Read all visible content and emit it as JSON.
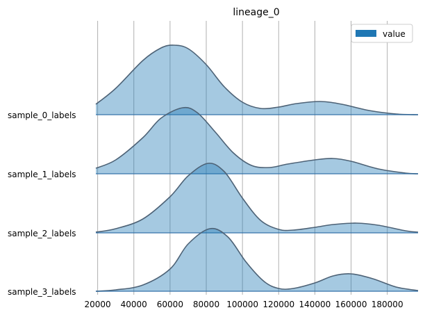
{
  "chart_data": {
    "type": "area",
    "title": "lineage_0",
    "xlabel": "",
    "ylabel": "",
    "x_ticks": [
      20000,
      40000,
      60000,
      80000,
      100000,
      120000,
      140000,
      160000,
      180000
    ],
    "x_tick_labels": [
      "20000",
      "40000",
      "60000",
      "80000",
      "100000",
      "120000",
      "140000",
      "160000",
      "180000"
    ],
    "xlim": [
      19000,
      197000
    ],
    "grid": "vertical",
    "legend": {
      "position": "top-right",
      "entries": [
        "value"
      ]
    },
    "colors": {
      "fill": "#1f77b4",
      "fill_opacity": 0.4,
      "line": "#4d6276",
      "baseline": "#2e6fa8"
    },
    "row_labels": [
      "sample_0_labels",
      "sample_1_labels",
      "sample_2_labels",
      "sample_3_labels"
    ],
    "series": [
      {
        "name": "sample_0_labels",
        "x": [
          19000,
          30000,
          45000,
          55000,
          62000,
          70000,
          80000,
          90000,
          100000,
          110000,
          120000,
          130000,
          143000,
          155000,
          170000,
          185000,
          197000
        ],
        "y": [
          0.15,
          0.38,
          0.78,
          0.96,
          1.0,
          0.95,
          0.72,
          0.4,
          0.18,
          0.09,
          0.11,
          0.16,
          0.19,
          0.15,
          0.06,
          0.01,
          0.0
        ]
      },
      {
        "name": "sample_1_labels",
        "x": [
          19000,
          30000,
          45000,
          55000,
          67000,
          75000,
          85000,
          95000,
          105000,
          115000,
          125000,
          140000,
          150000,
          160000,
          175000,
          190000,
          197000
        ],
        "y": [
          0.08,
          0.2,
          0.52,
          0.8,
          0.95,
          0.88,
          0.6,
          0.3,
          0.12,
          0.09,
          0.14,
          0.2,
          0.22,
          0.18,
          0.07,
          0.01,
          0.0
        ]
      },
      {
        "name": "sample_2_labels",
        "x": [
          19000,
          30000,
          45000,
          60000,
          70000,
          81000,
          90000,
          100000,
          110000,
          120000,
          128000,
          140000,
          150000,
          163000,
          175000,
          190000,
          197000
        ],
        "y": [
          0.01,
          0.06,
          0.2,
          0.52,
          0.82,
          1.0,
          0.88,
          0.5,
          0.18,
          0.05,
          0.04,
          0.08,
          0.12,
          0.14,
          0.11,
          0.03,
          0.01
        ]
      },
      {
        "name": "sample_3_labels",
        "x": [
          19000,
          30000,
          45000,
          60000,
          70000,
          82000,
          92000,
          102000,
          112000,
          120000,
          128000,
          140000,
          150000,
          160000,
          172000,
          185000,
          197000
        ],
        "y": [
          0.0,
          0.02,
          0.09,
          0.32,
          0.68,
          0.9,
          0.78,
          0.42,
          0.14,
          0.04,
          0.04,
          0.12,
          0.22,
          0.25,
          0.18,
          0.06,
          0.01
        ]
      }
    ]
  }
}
